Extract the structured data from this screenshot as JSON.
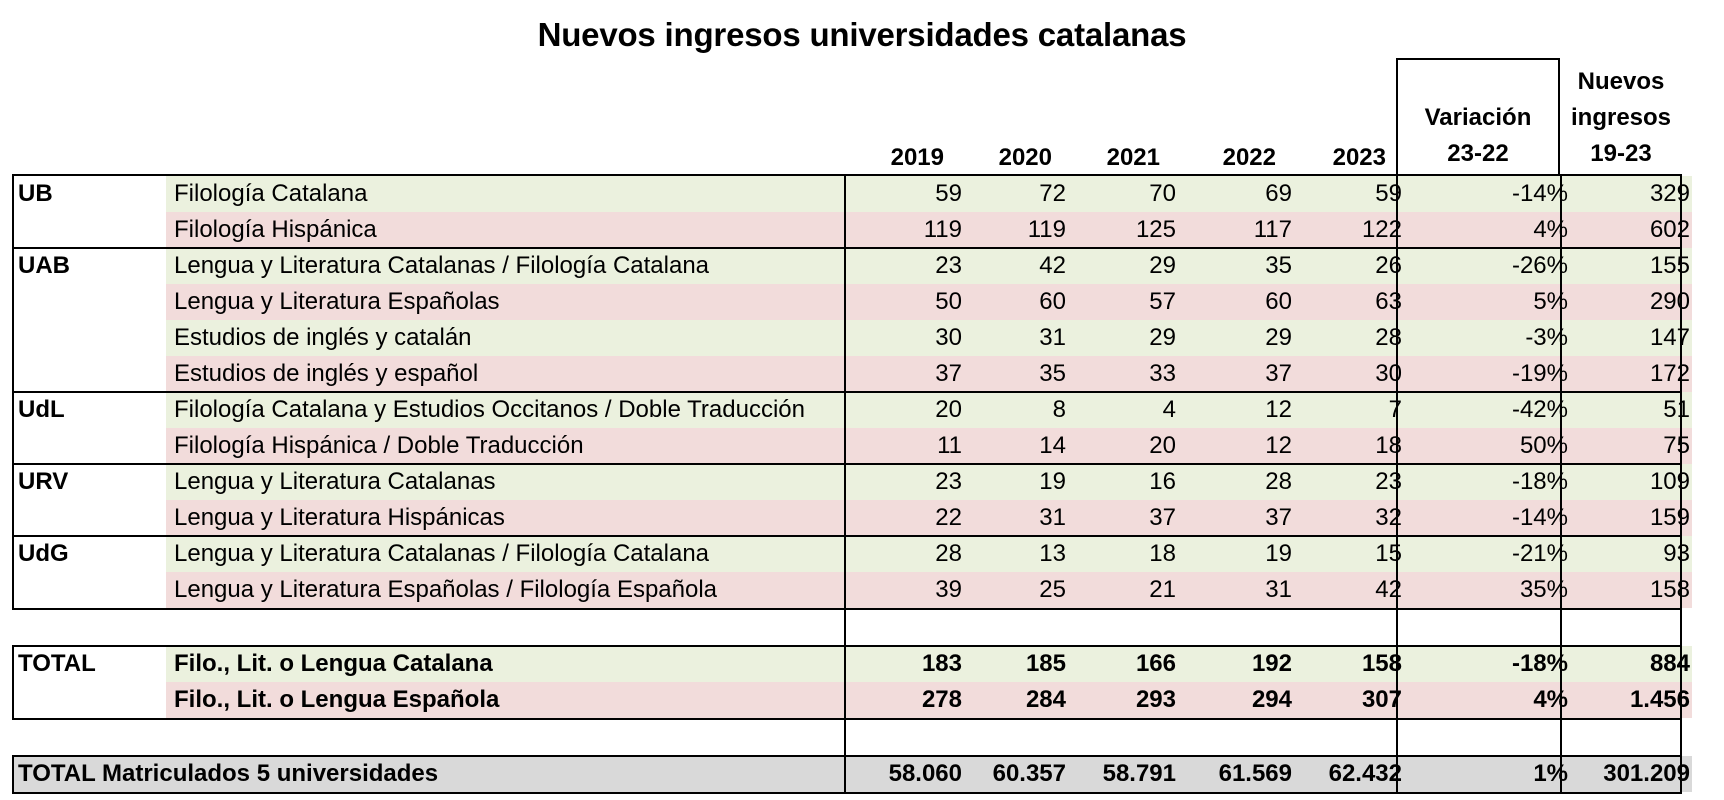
{
  "title": "Nuevos ingresos universidades catalanas",
  "headers": {
    "years": [
      "2019",
      "2020",
      "2021",
      "2022",
      "2023"
    ],
    "variation": [
      "Variación",
      "23-22"
    ],
    "total": [
      "Nuevos",
      "ingresos",
      "19-23"
    ]
  },
  "rows": [
    {
      "uni": "UB",
      "degree": "Filología Catalana",
      "v": [
        "59",
        "72",
        "70",
        "69",
        "59"
      ],
      "var": "-14%",
      "total": "329"
    },
    {
      "uni": "",
      "degree": "Filología Hispánica",
      "v": [
        "119",
        "119",
        "125",
        "117",
        "122"
      ],
      "var": "4%",
      "total": "602"
    },
    {
      "uni": "UAB",
      "degree": "Lengua y Literatura Catalanas / Filología Catalana",
      "v": [
        "23",
        "42",
        "29",
        "35",
        "26"
      ],
      "var": "-26%",
      "total": "155"
    },
    {
      "uni": "",
      "degree": "Lengua y Literatura Españolas",
      "v": [
        "50",
        "60",
        "57",
        "60",
        "63"
      ],
      "var": "5%",
      "total": "290"
    },
    {
      "uni": "",
      "degree": "Estudios de inglés y catalán",
      "v": [
        "30",
        "31",
        "29",
        "29",
        "28"
      ],
      "var": "-3%",
      "total": "147"
    },
    {
      "uni": "",
      "degree": "Estudios de inglés y español",
      "v": [
        "37",
        "35",
        "33",
        "37",
        "30"
      ],
      "var": "-19%",
      "total": "172"
    },
    {
      "uni": "UdL",
      "degree": "Filología Catalana y Estudios Occitanos / Doble Traducción",
      "v": [
        "20",
        "8",
        "4",
        "12",
        "7"
      ],
      "var": "-42%",
      "total": "51"
    },
    {
      "uni": "",
      "degree": "Filología Hispánica / Doble Traducción",
      "v": [
        "11",
        "14",
        "20",
        "12",
        "18"
      ],
      "var": "50%",
      "total": "75"
    },
    {
      "uni": "URV",
      "degree": "Lengua y Literatura Catalanas",
      "v": [
        "23",
        "19",
        "16",
        "28",
        "23"
      ],
      "var": "-18%",
      "total": "109"
    },
    {
      "uni": "",
      "degree": "Lengua y Literatura Hispánicas",
      "v": [
        "22",
        "31",
        "37",
        "37",
        "32"
      ],
      "var": "-14%",
      "total": "159"
    },
    {
      "uni": "UdG",
      "degree": "Lengua y Literatura Catalanas / Filología Catalana",
      "v": [
        "28",
        "13",
        "18",
        "19",
        "15"
      ],
      "var": "-21%",
      "total": "93"
    },
    {
      "uni": "",
      "degree": "Lengua y Literatura Españolas / Filología Española",
      "v": [
        "39",
        "25",
        "21",
        "31",
        "42"
      ],
      "var": "35%",
      "total": "158"
    }
  ],
  "totals": [
    {
      "uni": "TOTAL",
      "degree": "Filo., Lit. o Lengua Catalana",
      "v": [
        "183",
        "185",
        "166",
        "192",
        "158"
      ],
      "var": "-18%",
      "total": "884"
    },
    {
      "uni": "",
      "degree": "Filo., Lit. o Lengua Española",
      "v": [
        "278",
        "284",
        "293",
        "294",
        "307"
      ],
      "var": "4%",
      "total": "1.456"
    }
  ],
  "grand_total": {
    "label": "TOTAL Matriculados 5 universidades",
    "v": [
      "58.060",
      "60.357",
      "58.791",
      "61.569",
      "62.432"
    ],
    "var": "1%",
    "total": "301.209"
  }
}
